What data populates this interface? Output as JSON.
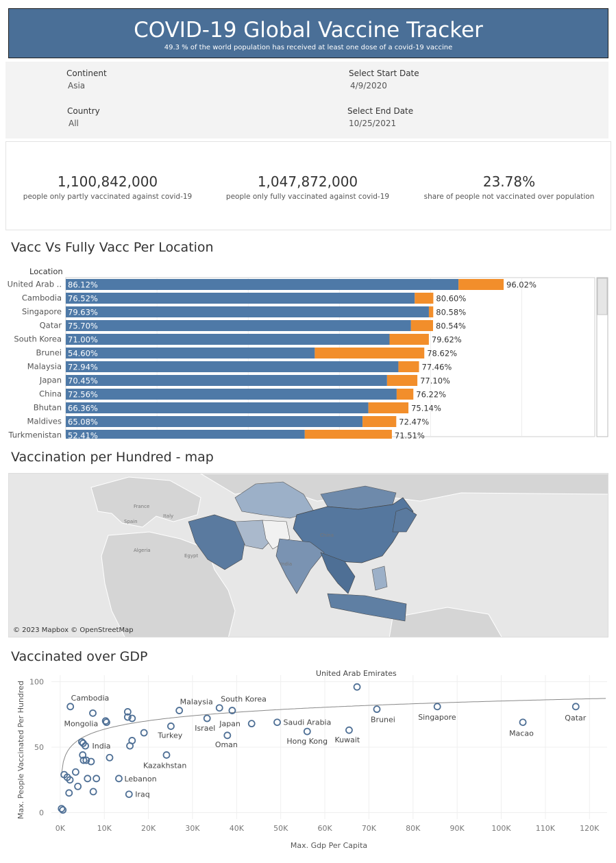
{
  "header": {
    "title": "COVID-19 Global Vaccine Tracker",
    "subtitle": "49.3 % of the world population has received at least one dose of a covid-19 vaccine"
  },
  "filters": {
    "continent": {
      "label": "Continent",
      "value": "Asia"
    },
    "country": {
      "label": "Country",
      "value": "All"
    },
    "start_date": {
      "label": "Select Start Date",
      "value": "4/9/2020"
    },
    "end_date": {
      "label": "Select End Date",
      "value": "10/25/2021"
    }
  },
  "kpis": [
    {
      "value": "1,100,842,000",
      "label": "people only partly vaccinated against covid-19"
    },
    {
      "value": "1,047,872,000",
      "label": "people only fully vaccinated against covid-19"
    },
    {
      "value": "23.78%",
      "label": "share of people not vaccinated over population"
    }
  ],
  "bar_section": {
    "title": "Vacc Vs Fully Vacc Per Location",
    "column_header": "Location"
  },
  "map_section": {
    "title": "Vaccination per Hundred - map",
    "attribution": "© 2023 Mapbox © OpenStreetMap",
    "labels": [
      "France",
      "Spain",
      "Italy",
      "Algeria",
      "Egypt",
      "China",
      "India"
    ]
  },
  "scatter_section": {
    "title": "Vaccinated over GDP"
  },
  "colors": {
    "header": "#4a6f97",
    "fully": "#4e79a7",
    "partly": "#f28e2b"
  },
  "chart_data": [
    {
      "type": "bar",
      "stacked": true,
      "orientation": "horizontal",
      "categories": [
        "United Arab ..",
        "Cambodia",
        "Singapore",
        "Qatar",
        "South Korea",
        "Brunei",
        "Malaysia",
        "Japan",
        "China",
        "Bhutan",
        "Maldives",
        "Turkmenistan"
      ],
      "series": [
        {
          "name": "fully",
          "values": [
            86.12,
            76.52,
            79.63,
            75.7,
            71.0,
            54.6,
            72.94,
            70.45,
            72.56,
            66.36,
            65.08,
            52.41
          ],
          "labels": [
            "86.12%",
            "76.52%",
            "79.63%",
            "75.70%",
            "71.00%",
            "54.60%",
            "72.94%",
            "70.45%",
            "72.56%",
            "66.36%",
            "65.08%",
            "52.41%"
          ]
        },
        {
          "name": "total",
          "values": [
            96.02,
            80.6,
            80.58,
            80.54,
            79.62,
            78.62,
            77.46,
            77.1,
            76.22,
            75.14,
            72.47,
            71.51
          ],
          "labels": [
            "96.02%",
            "80.60%",
            "80.58%",
            "80.54%",
            "79.62%",
            "78.62%",
            "77.46%",
            "77.10%",
            "76.22%",
            "75.14%",
            "72.47%",
            "71.51%"
          ]
        }
      ],
      "xlim": [
        0,
        116
      ]
    },
    {
      "type": "scatter",
      "xlabel": "Max. Gdp Per Capita",
      "ylabel": "Max. People Vaccinated Per Hundred",
      "xlim": [
        -2000,
        124000
      ],
      "ylim": [
        -5,
        105
      ],
      "xticks": [
        0,
        10000,
        20000,
        30000,
        40000,
        50000,
        60000,
        70000,
        80000,
        90000,
        100000,
        110000,
        120000
      ],
      "xtick_labels": [
        "0K",
        "10K",
        "20K",
        "30K",
        "40K",
        "50K",
        "60K",
        "70K",
        "80K",
        "90K",
        "100K",
        "110K",
        "120K"
      ],
      "yticks": [
        0,
        50,
        100
      ],
      "ytick_labels": [
        "0",
        "50",
        "100"
      ],
      "trendline": "logarithmic",
      "points": [
        {
          "x": 67300,
          "y": 96,
          "label": "United Arab Emirates"
        },
        {
          "x": 2300,
          "y": 81,
          "label": "Cambodia"
        },
        {
          "x": 85500,
          "y": 81,
          "label": "Singapore"
        },
        {
          "x": 116900,
          "y": 81,
          "label": "Qatar"
        },
        {
          "x": 71800,
          "y": 79,
          "label": "Brunei"
        },
        {
          "x": 27000,
          "y": 78,
          "label": "Malaysia"
        },
        {
          "x": 36100,
          "y": 80,
          "label": "South Korea"
        },
        {
          "x": 39000,
          "y": 78,
          "label": ""
        },
        {
          "x": 15300,
          "y": 77,
          "label": ""
        },
        {
          "x": 7400,
          "y": 76,
          "label": ""
        },
        {
          "x": 15300,
          "y": 73,
          "label": ""
        },
        {
          "x": 16300,
          "y": 72,
          "label": ""
        },
        {
          "x": 10300,
          "y": 70,
          "label": ""
        },
        {
          "x": 10500,
          "y": 69,
          "label": "Mongolia"
        },
        {
          "x": 33300,
          "y": 72,
          "label": "Israel"
        },
        {
          "x": 43400,
          "y": 68,
          "label": "Japan"
        },
        {
          "x": 49200,
          "y": 69,
          "label": "Saudi Arabia"
        },
        {
          "x": 104900,
          "y": 69,
          "label": "Macao"
        },
        {
          "x": 25100,
          "y": 66,
          "label": "Turkey"
        },
        {
          "x": 19000,
          "y": 61,
          "label": ""
        },
        {
          "x": 56000,
          "y": 62,
          "label": "Hong Kong"
        },
        {
          "x": 65500,
          "y": 63,
          "label": "Kuwait"
        },
        {
          "x": 37900,
          "y": 59,
          "label": "Oman"
        },
        {
          "x": 16300,
          "y": 55,
          "label": ""
        },
        {
          "x": 4900,
          "y": 54,
          "label": ""
        },
        {
          "x": 5200,
          "y": 53,
          "label": ""
        },
        {
          "x": 15800,
          "y": 51,
          "label": ""
        },
        {
          "x": 5700,
          "y": 51,
          "label": "India"
        },
        {
          "x": 24100,
          "y": 44,
          "label": "Kazakhstan"
        },
        {
          "x": 5100,
          "y": 44,
          "label": ""
        },
        {
          "x": 11200,
          "y": 42,
          "label": ""
        },
        {
          "x": 5300,
          "y": 40,
          "label": ""
        },
        {
          "x": 5900,
          "y": 40,
          "label": ""
        },
        {
          "x": 7000,
          "y": 39,
          "label": ""
        },
        {
          "x": 900,
          "y": 29,
          "label": ""
        },
        {
          "x": 3500,
          "y": 31,
          "label": ""
        },
        {
          "x": 1600,
          "y": 27,
          "label": ""
        },
        {
          "x": 2200,
          "y": 25,
          "label": ""
        },
        {
          "x": 6200,
          "y": 26,
          "label": ""
        },
        {
          "x": 8200,
          "y": 26,
          "label": ""
        },
        {
          "x": 13300,
          "y": 26,
          "label": "Lebanon"
        },
        {
          "x": 4000,
          "y": 20,
          "label": ""
        },
        {
          "x": 2000,
          "y": 15,
          "label": ""
        },
        {
          "x": 7500,
          "y": 16,
          "label": ""
        },
        {
          "x": 15600,
          "y": 14,
          "label": "Iraq"
        },
        {
          "x": 300,
          "y": 3,
          "label": ""
        },
        {
          "x": 600,
          "y": 2,
          "label": ""
        }
      ]
    }
  ]
}
